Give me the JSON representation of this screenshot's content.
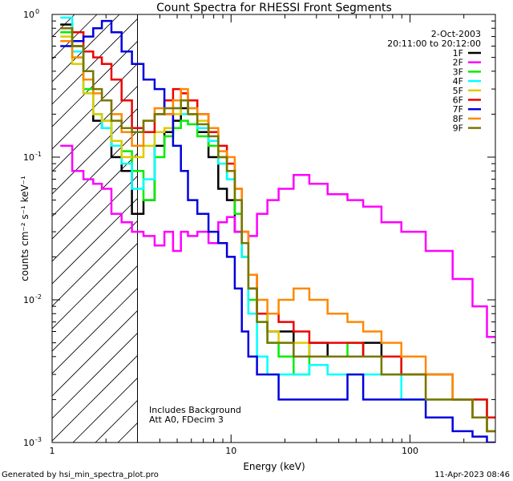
{
  "chart_data": {
    "type": "line",
    "title": "Count Spectra for RHESSI Front Segments",
    "xlabel": "Energy (keV)",
    "ylabel": "counts cm⁻² s⁻¹ keV⁻¹",
    "x_scale": "log",
    "y_scale": "log",
    "xlim": [
      1.0,
      300
    ],
    "ylim": [
      0.001,
      1.0
    ],
    "x_ticks": [
      {
        "value": 1,
        "label": "1"
      },
      {
        "value": 10,
        "label": "10"
      },
      {
        "value": 100,
        "label": "100"
      }
    ],
    "y_ticks": [
      {
        "value": 1.0,
        "label": "10",
        "exp": "0"
      },
      {
        "value": 0.1,
        "label": "10",
        "exp": "-1"
      },
      {
        "value": 0.01,
        "label": "10",
        "exp": "-2"
      },
      {
        "value": 0.001,
        "label": "10",
        "exp": "-3"
      }
    ],
    "hatched_region": {
      "x_from": 1.0,
      "x_to": 3.0
    },
    "header_lines": [
      "2-Oct-2003",
      "20:11:00 to 20:12:00"
    ],
    "annotations": [
      "Includes Background",
      "Att A0, FDecim 3"
    ],
    "series": [
      {
        "name": "1F",
        "color": "#000000",
        "energies": [
          1.2,
          1.4,
          1.6,
          1.8,
          2.0,
          2.3,
          2.6,
          3.0,
          3.5,
          4.0,
          4.5,
          5.0,
          5.5,
          6.0,
          7.0,
          8.0,
          9.0,
          10.0,
          11.0,
          12.0,
          13.0,
          15.0,
          17.0,
          20.0,
          25.0,
          30.0,
          40.0,
          50.0,
          60.0,
          80.0,
          100.0,
          150.0,
          200.0,
          250.0,
          290.0
        ],
        "values": [
          0.85,
          0.6,
          0.35,
          0.18,
          0.16,
          0.1,
          0.08,
          0.04,
          0.05,
          0.12,
          0.15,
          0.18,
          0.22,
          0.2,
          0.15,
          0.1,
          0.06,
          0.05,
          0.03,
          0.02,
          0.012,
          0.008,
          0.006,
          0.006,
          0.004,
          0.005,
          0.004,
          0.004,
          0.005,
          0.004,
          0.003,
          0.003,
          0.002,
          0.0015,
          0.0012
        ]
      },
      {
        "name": "2F",
        "color": "#ff00ff",
        "energies": [
          1.2,
          1.4,
          1.6,
          1.8,
          2.0,
          2.3,
          2.6,
          3.0,
          3.5,
          4.0,
          4.5,
          5.0,
          5.5,
          6.0,
          7.0,
          8.0,
          9.0,
          10.0,
          11.0,
          12.0,
          13.0,
          15.0,
          17.0,
          20.0,
          25.0,
          30.0,
          40.0,
          50.0,
          60.0,
          80.0,
          100.0,
          150.0,
          200.0,
          250.0,
          290.0
        ],
        "values": [
          0.12,
          0.08,
          0.07,
          0.065,
          0.06,
          0.04,
          0.035,
          0.03,
          0.028,
          0.024,
          0.03,
          0.022,
          0.03,
          0.028,
          0.03,
          0.025,
          0.035,
          0.038,
          0.03,
          0.025,
          0.028,
          0.04,
          0.05,
          0.06,
          0.075,
          0.065,
          0.055,
          0.05,
          0.045,
          0.035,
          0.03,
          0.022,
          0.014,
          0.009,
          0.0055
        ]
      },
      {
        "name": "3F",
        "color": "#00ee00",
        "energies": [
          1.2,
          1.4,
          1.6,
          1.8,
          2.0,
          2.3,
          2.6,
          3.0,
          3.5,
          4.0,
          4.5,
          5.0,
          5.5,
          6.0,
          7.0,
          8.0,
          9.0,
          10.0,
          11.0,
          12.0,
          13.0,
          15.0,
          17.0,
          20.0,
          25.0,
          30.0,
          40.0,
          50.0,
          60.0,
          80.0,
          100.0,
          150.0,
          200.0,
          250.0,
          290.0
        ],
        "values": [
          0.75,
          0.5,
          0.3,
          0.2,
          0.18,
          0.13,
          0.11,
          0.08,
          0.05,
          0.1,
          0.14,
          0.16,
          0.18,
          0.17,
          0.14,
          0.12,
          0.1,
          0.07,
          0.04,
          0.02,
          0.01,
          0.007,
          0.005,
          0.004,
          0.003,
          0.004,
          0.004,
          0.005,
          0.004,
          0.004,
          0.003,
          0.003,
          0.002,
          0.002,
          0.0015
        ]
      },
      {
        "name": "4F",
        "color": "#00ffff",
        "energies": [
          1.2,
          1.4,
          1.6,
          1.8,
          2.0,
          2.3,
          2.6,
          3.0,
          3.5,
          4.0,
          4.5,
          5.0,
          5.5,
          6.0,
          7.0,
          8.0,
          9.0,
          10.0,
          11.0,
          12.0,
          13.0,
          15.0,
          17.0,
          20.0,
          25.0,
          30.0,
          40.0,
          50.0,
          60.0,
          80.0,
          100.0,
          150.0,
          200.0,
          250.0,
          290.0
        ],
        "values": [
          0.95,
          0.55,
          0.28,
          0.2,
          0.16,
          0.12,
          0.09,
          0.06,
          0.07,
          0.2,
          0.25,
          0.22,
          0.2,
          0.22,
          0.16,
          0.13,
          0.09,
          0.07,
          0.05,
          0.02,
          0.008,
          0.004,
          0.003,
          0.003,
          0.003,
          0.0035,
          0.003,
          0.003,
          0.003,
          0.003,
          0.002,
          0.002,
          0.002,
          0.0015,
          0.0012
        ]
      },
      {
        "name": "5F",
        "color": "#ddcc00",
        "energies": [
          1.2,
          1.4,
          1.6,
          1.8,
          2.0,
          2.3,
          2.6,
          3.0,
          3.5,
          4.0,
          4.5,
          5.0,
          5.5,
          6.0,
          7.0,
          8.0,
          9.0,
          10.0,
          11.0,
          12.0,
          13.0,
          15.0,
          17.0,
          20.0,
          25.0,
          30.0,
          40.0,
          50.0,
          60.0,
          80.0,
          100.0,
          150.0,
          200.0,
          250.0,
          290.0
        ],
        "values": [
          0.7,
          0.45,
          0.28,
          0.2,
          0.18,
          0.13,
          0.1,
          0.1,
          0.12,
          0.15,
          0.16,
          0.2,
          0.25,
          0.2,
          0.18,
          0.15,
          0.1,
          0.08,
          0.05,
          0.03,
          0.015,
          0.008,
          0.006,
          0.005,
          0.005,
          0.004,
          0.004,
          0.004,
          0.004,
          0.003,
          0.003,
          0.002,
          0.002,
          0.0015,
          0.0012
        ]
      },
      {
        "name": "6F",
        "color": "#ee0000",
        "energies": [
          1.2,
          1.4,
          1.6,
          1.8,
          2.0,
          2.3,
          2.6,
          3.0,
          3.5,
          4.0,
          4.5,
          5.0,
          5.5,
          6.0,
          7.0,
          8.0,
          9.0,
          10.0,
          11.0,
          12.0,
          13.0,
          15.0,
          17.0,
          20.0,
          25.0,
          30.0,
          40.0,
          50.0,
          60.0,
          80.0,
          100.0,
          150.0,
          200.0,
          250.0,
          290.0
        ],
        "values": [
          0.8,
          0.75,
          0.55,
          0.5,
          0.45,
          0.35,
          0.25,
          0.16,
          0.15,
          0.2,
          0.25,
          0.3,
          0.28,
          0.25,
          0.2,
          0.15,
          0.12,
          0.09,
          0.06,
          0.03,
          0.015,
          0.008,
          0.008,
          0.007,
          0.006,
          0.005,
          0.005,
          0.005,
          0.004,
          0.004,
          0.003,
          0.003,
          0.002,
          0.002,
          0.0015
        ]
      },
      {
        "name": "7F",
        "color": "#0000dd",
        "energies": [
          1.2,
          1.4,
          1.6,
          1.8,
          2.0,
          2.3,
          2.6,
          3.0,
          3.5,
          4.0,
          4.5,
          5.0,
          5.5,
          6.0,
          7.0,
          8.0,
          9.0,
          10.0,
          11.0,
          12.0,
          13.0,
          15.0,
          17.0,
          20.0,
          25.0,
          30.0,
          40.0,
          50.0,
          60.0,
          80.0,
          100.0,
          150.0,
          200.0,
          250.0,
          290.0
        ],
        "values": [
          0.6,
          0.65,
          0.7,
          0.8,
          0.9,
          0.75,
          0.55,
          0.45,
          0.35,
          0.3,
          0.2,
          0.12,
          0.08,
          0.05,
          0.04,
          0.03,
          0.025,
          0.02,
          0.012,
          0.006,
          0.004,
          0.003,
          0.003,
          0.002,
          0.002,
          0.002,
          0.002,
          0.003,
          0.002,
          0.002,
          0.002,
          0.0015,
          0.0012,
          0.0011,
          0.001
        ]
      },
      {
        "name": "8F",
        "color": "#ff8800",
        "energies": [
          1.2,
          1.4,
          1.6,
          1.8,
          2.0,
          2.3,
          2.6,
          3.0,
          3.5,
          4.0,
          4.5,
          5.0,
          5.5,
          6.0,
          7.0,
          8.0,
          9.0,
          10.0,
          11.0,
          12.0,
          13.0,
          15.0,
          17.0,
          20.0,
          25.0,
          30.0,
          40.0,
          50.0,
          60.0,
          80.0,
          100.0,
          150.0,
          200.0,
          250.0,
          290.0
        ],
        "values": [
          0.65,
          0.5,
          0.35,
          0.28,
          0.25,
          0.2,
          0.15,
          0.12,
          0.18,
          0.22,
          0.2,
          0.25,
          0.3,
          0.22,
          0.2,
          0.16,
          0.11,
          0.1,
          0.06,
          0.03,
          0.015,
          0.01,
          0.008,
          0.01,
          0.012,
          0.01,
          0.008,
          0.007,
          0.006,
          0.005,
          0.004,
          0.003,
          0.002,
          0.0015,
          0.0012
        ]
      },
      {
        "name": "9F",
        "color": "#777700",
        "energies": [
          1.2,
          1.4,
          1.6,
          1.8,
          2.0,
          2.3,
          2.6,
          3.0,
          3.5,
          4.0,
          4.5,
          5.0,
          5.5,
          6.0,
          7.0,
          8.0,
          9.0,
          10.0,
          11.0,
          12.0,
          13.0,
          15.0,
          17.0,
          20.0,
          25.0,
          30.0,
          40.0,
          50.0,
          60.0,
          80.0,
          100.0,
          150.0,
          200.0,
          250.0,
          290.0
        ],
        "values": [
          0.8,
          0.6,
          0.4,
          0.3,
          0.25,
          0.18,
          0.16,
          0.15,
          0.18,
          0.2,
          0.22,
          0.22,
          0.25,
          0.2,
          0.17,
          0.14,
          0.1,
          0.08,
          0.05,
          0.025,
          0.012,
          0.007,
          0.005,
          0.005,
          0.004,
          0.004,
          0.004,
          0.004,
          0.004,
          0.003,
          0.003,
          0.002,
          0.002,
          0.0015,
          0.0012
        ]
      }
    ]
  },
  "footer": {
    "left": "Generated by hsi_min_spectra_plot.pro",
    "right": "11-Apr-2023 08:46"
  }
}
